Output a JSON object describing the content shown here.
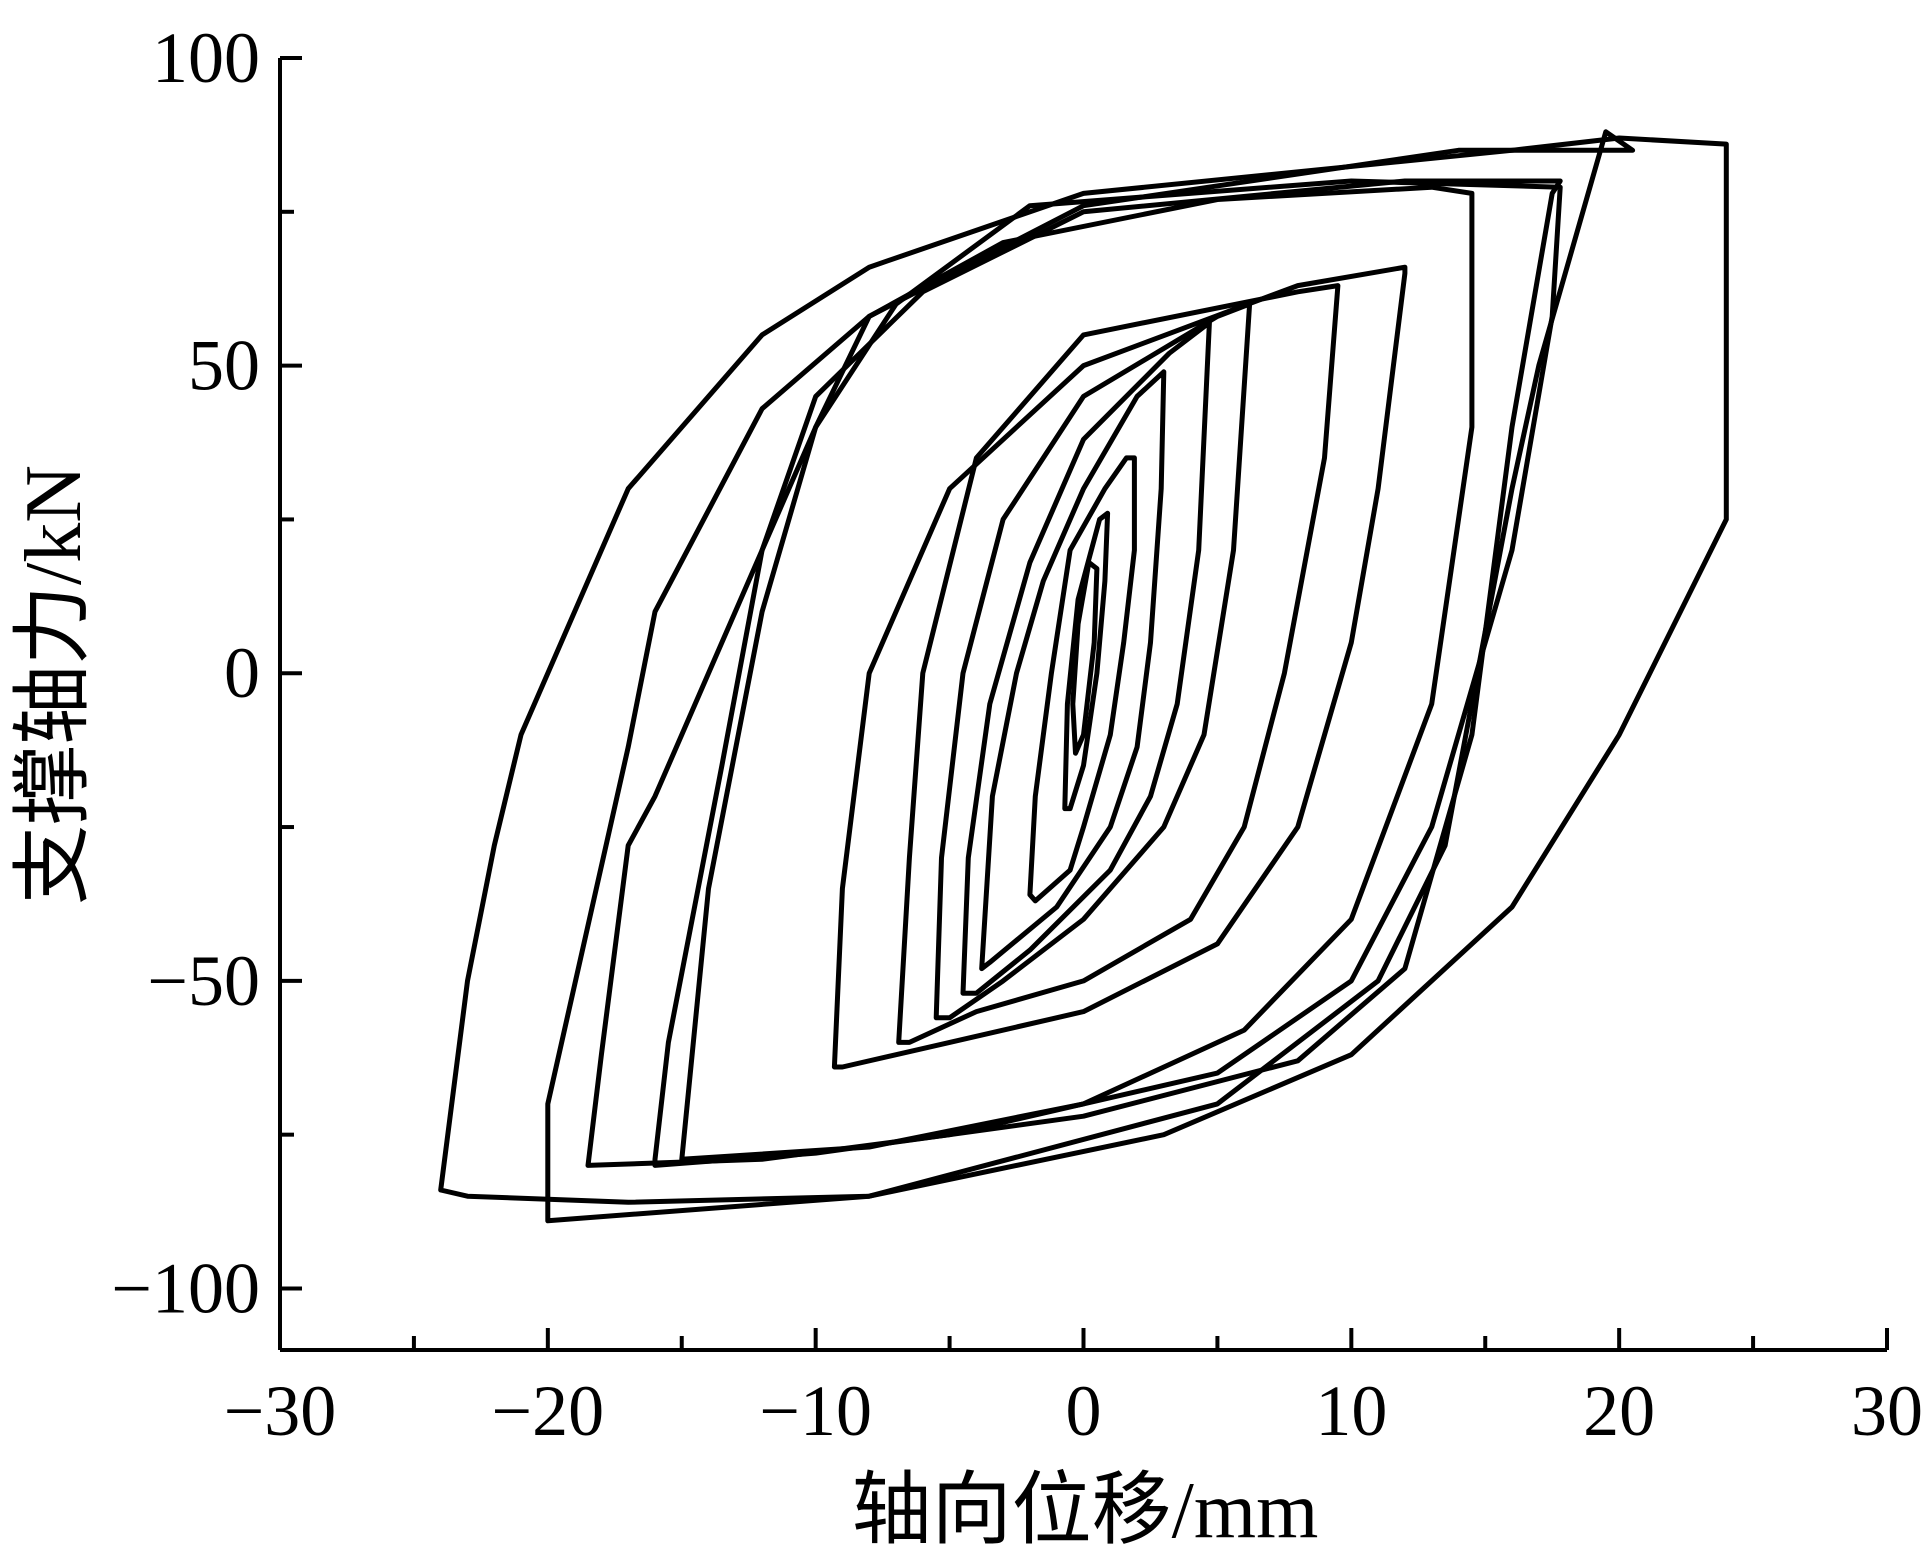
{
  "chart_data": {
    "type": "line",
    "title": "",
    "xlabel": "轴向位移/mm",
    "ylabel": "支撑轴力/kN",
    "xlim": [
      -30,
      30
    ],
    "ylim": [
      -110,
      100
    ],
    "xticks": [
      -30,
      -20,
      -10,
      0,
      10,
      20,
      30
    ],
    "xtick_labels": [
      "−30",
      "−20",
      "−10",
      "0",
      "10",
      "20",
      "30"
    ],
    "yticks": [
      -100,
      -50,
      0,
      50,
      100
    ],
    "ytick_labels": [
      "−100",
      "−50",
      "0",
      "50",
      "100"
    ],
    "grid": false,
    "legend": "none",
    "line_color": "#000000",
    "series": [
      {
        "x": [
          0.0,
          0.4,
          0.5,
          0.2,
          -0.2,
          -0.4,
          -0.3,
          0.0
        ],
        "y": [
          -10,
          5,
          17,
          18,
          8,
          -5,
          -13,
          -10
        ]
      },
      {
        "x": [
          0.0,
          0.5,
          0.8,
          0.9,
          0.6,
          -0.2,
          -0.6,
          -0.7,
          -0.5,
          0.0
        ],
        "y": [
          -15,
          0,
          15,
          26,
          25,
          12,
          -5,
          -22,
          -22,
          -15
        ]
      },
      {
        "x": [
          -0.5,
          0.0,
          1.0,
          1.5,
          1.9,
          1.9,
          1.6,
          0.8,
          -0.5,
          -1.2,
          -1.8,
          -2.0,
          -1.8,
          -0.5
        ],
        "y": [
          -32,
          -25,
          -10,
          5,
          20,
          35,
          35,
          30,
          20,
          0,
          -20,
          -36,
          -37,
          -32
        ]
      },
      {
        "x": [
          -3.5,
          -1.0,
          1.0,
          2.0,
          2.5,
          2.9,
          3.0,
          2.0,
          0.0,
          -1.5,
          -2.5,
          -3.4,
          -3.8,
          -3.5
        ],
        "y": [
          -47,
          -38,
          -25,
          -12,
          5,
          30,
          49,
          45,
          30,
          15,
          0,
          -20,
          -48,
          -47
        ]
      },
      {
        "x": [
          -4.0,
          -2.0,
          1.0,
          2.5,
          3.5,
          4.3,
          4.7,
          3.2,
          0.0,
          -2.0,
          -3.5,
          -4.3,
          -4.5,
          -4.0
        ],
        "y": [
          -52,
          -45,
          -32,
          -20,
          -5,
          20,
          57,
          52,
          38,
          18,
          -5,
          -30,
          -52,
          -52
        ]
      },
      {
        "x": [
          -5.0,
          -3.0,
          0.0,
          3.0,
          4.5,
          5.6,
          6.2,
          5.0,
          0.0,
          -3.0,
          -4.5,
          -5.3,
          -5.5,
          -5.0
        ],
        "y": [
          -56,
          -50,
          -40,
          -25,
          -10,
          20,
          60,
          58,
          45,
          25,
          0,
          -30,
          -56,
          -56
        ]
      },
      {
        "x": [
          -6.5,
          -4.0,
          0.0,
          4.0,
          6.0,
          7.5,
          9.0,
          9.5,
          8.0,
          0.0,
          -4.0,
          -6.0,
          -6.5,
          -6.9,
          -6.5
        ],
        "y": [
          -60,
          -55,
          -50,
          -40,
          -25,
          0,
          35,
          63,
          62,
          55,
          35,
          0,
          -30,
          -60,
          -60
        ]
      },
      {
        "x": [
          -9.0,
          -5.0,
          0.0,
          5.0,
          8.0,
          10.0,
          11.0,
          12.0,
          12.0,
          8.0,
          0.0,
          -5.0,
          -8.0,
          -9.0,
          -9.3,
          -9.0
        ],
        "y": [
          -64,
          -60,
          -55,
          -44,
          -25,
          5,
          30,
          65,
          66,
          63,
          50,
          30,
          0,
          -35,
          -64,
          -64
        ]
      },
      {
        "x": [
          -15.0,
          -8.0,
          0.0,
          6.0,
          10.0,
          13.0,
          14.5,
          14.5,
          13.0,
          5.0,
          -3.0,
          -8.0,
          -10.0,
          -12.0,
          -14.0,
          -15.0,
          -15.0
        ],
        "y": [
          -79,
          -77,
          -70,
          -58,
          -40,
          -5,
          40,
          78,
          79,
          77,
          70,
          58,
          40,
          10,
          -35,
          -79,
          -79
        ]
      },
      {
        "x": [
          -16.0,
          -10.0,
          0.0,
          8.0,
          12.0,
          14.5,
          16.0,
          17.5,
          17.8,
          12.0,
          0.0,
          -6.0,
          -10.0,
          -12.0,
          -13.5,
          -15.5,
          -16.0,
          -16.0
        ],
        "y": [
          -80,
          -78,
          -72,
          -63,
          -48,
          -10,
          40,
          78,
          80,
          80,
          75,
          62,
          45,
          20,
          -15,
          -60,
          -79,
          -80
        ]
      },
      {
        "x": [
          -18.5,
          -12.0,
          -5.0,
          5.0,
          10.0,
          13.0,
          16.0,
          17.5,
          17.8,
          10.0,
          -2.0,
          -7.0,
          -10.0,
          -14.0,
          -16.0,
          -17.0,
          -18.0,
          -18.5
        ],
        "y": [
          -80,
          -79,
          -75,
          -65,
          -50,
          -25,
          20,
          58,
          79,
          80,
          76,
          60,
          40,
          0,
          -20,
          -28,
          -62,
          -80
        ]
      },
      {
        "x": [
          -20.0,
          -8.0,
          5.0,
          11.0,
          13.5,
          16.0,
          17.0,
          19.5,
          20.5,
          14.0,
          0.0,
          -8.0,
          -12.0,
          -16.0,
          -17.0,
          -20.0,
          -20.0
        ],
        "y": [
          -89,
          -85,
          -70,
          -50,
          -28,
          30,
          50,
          88,
          85,
          85,
          76,
          58,
          43,
          10,
          -12,
          -70,
          -89
        ]
      },
      {
        "x": [
          -24.0,
          -23.0,
          -17.0,
          -8.0,
          3.0,
          10.0,
          16.0,
          20.0,
          24.0,
          24.0,
          20.0,
          16.0,
          0.0,
          -8.0,
          -12.0,
          -17.0,
          -20.0,
          -21.0,
          -22.0,
          -23.0,
          -24.0
        ],
        "y": [
          -84,
          -85,
          -86,
          -85,
          -75,
          -62,
          -38,
          -10,
          25,
          86,
          87,
          85,
          78,
          66,
          55,
          30,
          0,
          -10,
          -28,
          -50,
          -84
        ]
      }
    ]
  }
}
